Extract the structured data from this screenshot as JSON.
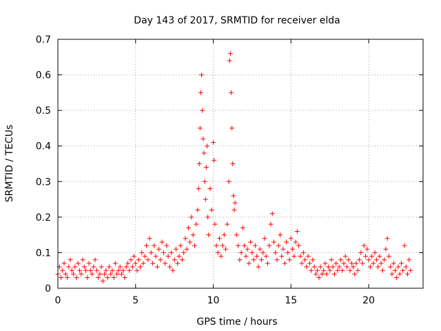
{
  "chart_data": {
    "type": "scatter",
    "title": "Day 143 of 2017, SRMTID for receiver elda",
    "xlabel": "GPS time / hours",
    "ylabel": "SRMTID / TECUs",
    "xlim": [
      0,
      23.5
    ],
    "ylim": [
      0,
      0.7
    ],
    "xticks": [
      0,
      5,
      10,
      15,
      20
    ],
    "yticks": [
      0,
      0.1,
      0.2,
      0.3,
      0.4,
      0.5,
      0.6,
      0.7
    ],
    "xtick_labels": [
      "0",
      "5",
      "10",
      "15",
      "20"
    ],
    "ytick_labels": [
      "0",
      "0.1",
      "0.2",
      "0.3",
      "0.4",
      "0.5",
      "0.6",
      "0.7"
    ],
    "grid": true,
    "marker": "plus",
    "series": [
      {
        "name": "SRMTID",
        "color": "#ff0000",
        "points": [
          [
            0.0,
            0.04
          ],
          [
            0.1,
            0.06
          ],
          [
            0.2,
            0.03
          ],
          [
            0.3,
            0.05
          ],
          [
            0.4,
            0.07
          ],
          [
            0.5,
            0.04
          ],
          [
            0.6,
            0.03
          ],
          [
            0.7,
            0.06
          ],
          [
            0.8,
            0.08
          ],
          [
            0.9,
            0.05
          ],
          [
            1.0,
            0.04
          ],
          [
            1.1,
            0.06
          ],
          [
            1.2,
            0.03
          ],
          [
            1.3,
            0.07
          ],
          [
            1.4,
            0.05
          ],
          [
            1.5,
            0.04
          ],
          [
            1.6,
            0.08
          ],
          [
            1.7,
            0.06
          ],
          [
            1.8,
            0.05
          ],
          [
            1.9,
            0.03
          ],
          [
            2.0,
            0.07
          ],
          [
            2.1,
            0.05
          ],
          [
            2.2,
            0.04
          ],
          [
            2.3,
            0.06
          ],
          [
            2.4,
            0.08
          ],
          [
            2.5,
            0.05
          ],
          [
            2.6,
            0.03
          ],
          [
            2.7,
            0.04
          ],
          [
            2.8,
            0.06
          ],
          [
            2.9,
            0.02
          ],
          [
            3.0,
            0.04
          ],
          [
            3.1,
            0.05
          ],
          [
            3.2,
            0.03
          ],
          [
            3.3,
            0.06
          ],
          [
            3.4,
            0.04
          ],
          [
            3.5,
            0.05
          ],
          [
            3.6,
            0.03
          ],
          [
            3.7,
            0.07
          ],
          [
            3.8,
            0.04
          ],
          [
            3.9,
            0.05
          ],
          [
            4.0,
            0.06
          ],
          [
            4.1,
            0.04
          ],
          [
            4.2,
            0.05
          ],
          [
            4.3,
            0.03
          ],
          [
            4.4,
            0.06
          ],
          [
            4.5,
            0.07
          ],
          [
            4.6,
            0.05
          ],
          [
            4.7,
            0.08
          ],
          [
            4.8,
            0.06
          ],
          [
            4.9,
            0.09
          ],
          [
            5.0,
            0.07
          ],
          [
            5.1,
            0.05
          ],
          [
            5.2,
            0.08
          ],
          [
            5.3,
            0.06
          ],
          [
            5.4,
            0.1
          ],
          [
            5.5,
            0.07
          ],
          [
            5.6,
            0.09
          ],
          [
            5.7,
            0.12
          ],
          [
            5.8,
            0.08
          ],
          [
            5.9,
            0.14
          ],
          [
            6.0,
            0.1
          ],
          [
            6.1,
            0.07
          ],
          [
            6.2,
            0.12
          ],
          [
            6.3,
            0.09
          ],
          [
            6.4,
            0.06
          ],
          [
            6.5,
            0.11
          ],
          [
            6.6,
            0.08
          ],
          [
            6.7,
            0.13
          ],
          [
            6.8,
            0.1
          ],
          [
            6.9,
            0.07
          ],
          [
            7.0,
            0.12
          ],
          [
            7.1,
            0.09
          ],
          [
            7.2,
            0.06
          ],
          [
            7.3,
            0.1
          ],
          [
            7.4,
            0.05
          ],
          [
            7.5,
            0.08
          ],
          [
            7.6,
            0.11
          ],
          [
            7.7,
            0.07
          ],
          [
            7.8,
            0.09
          ],
          [
            7.9,
            0.12
          ],
          [
            8.0,
            0.08
          ],
          [
            8.1,
            0.1
          ],
          [
            8.2,
            0.14
          ],
          [
            8.3,
            0.11
          ],
          [
            8.4,
            0.17
          ],
          [
            8.5,
            0.13
          ],
          [
            8.6,
            0.2
          ],
          [
            8.7,
            0.15
          ],
          [
            8.8,
            0.12
          ],
          [
            8.9,
            0.18
          ],
          [
            9.0,
            0.22
          ],
          [
            9.05,
            0.28
          ],
          [
            9.1,
            0.35
          ],
          [
            9.15,
            0.45
          ],
          [
            9.2,
            0.55
          ],
          [
            9.25,
            0.6
          ],
          [
            9.3,
            0.5
          ],
          [
            9.35,
            0.42
          ],
          [
            9.4,
            0.38
          ],
          [
            9.45,
            0.3
          ],
          [
            9.5,
            0.25
          ],
          [
            9.55,
            0.34
          ],
          [
            9.6,
            0.4
          ],
          [
            9.65,
            0.2
          ],
          [
            9.7,
            0.15
          ],
          [
            9.8,
            0.28
          ],
          [
            9.9,
            0.22
          ],
          [
            10.0,
            0.41
          ],
          [
            10.05,
            0.36
          ],
          [
            10.1,
            0.18
          ],
          [
            10.2,
            0.12
          ],
          [
            10.3,
            0.1
          ],
          [
            10.4,
            0.14
          ],
          [
            10.5,
            0.09
          ],
          [
            10.6,
            0.12
          ],
          [
            10.7,
            0.15
          ],
          [
            10.8,
            0.11
          ],
          [
            10.9,
            0.18
          ],
          [
            11.0,
            0.3
          ],
          [
            11.05,
            0.64
          ],
          [
            11.1,
            0.66
          ],
          [
            11.15,
            0.55
          ],
          [
            11.2,
            0.45
          ],
          [
            11.25,
            0.35
          ],
          [
            11.3,
            0.26
          ],
          [
            11.35,
            0.22
          ],
          [
            11.4,
            0.24
          ],
          [
            11.5,
            0.15
          ],
          [
            11.6,
            0.12
          ],
          [
            11.7,
            0.08
          ],
          [
            11.8,
            0.1
          ],
          [
            11.9,
            0.17
          ],
          [
            12.0,
            0.12
          ],
          [
            12.1,
            0.09
          ],
          [
            12.2,
            0.11
          ],
          [
            12.3,
            0.07
          ],
          [
            12.4,
            0.13
          ],
          [
            12.5,
            0.1
          ],
          [
            12.6,
            0.08
          ],
          [
            12.7,
            0.12
          ],
          [
            12.8,
            0.09
          ],
          [
            12.9,
            0.06
          ],
          [
            13.0,
            0.11
          ],
          [
            13.1,
            0.08
          ],
          [
            13.2,
            0.1
          ],
          [
            13.3,
            0.14
          ],
          [
            13.4,
            0.09
          ],
          [
            13.5,
            0.07
          ],
          [
            13.6,
            0.12
          ],
          [
            13.7,
            0.18
          ],
          [
            13.8,
            0.21
          ],
          [
            13.9,
            0.13
          ],
          [
            14.0,
            0.1
          ],
          [
            14.1,
            0.08
          ],
          [
            14.2,
            0.12
          ],
          [
            14.3,
            0.15
          ],
          [
            14.4,
            0.09
          ],
          [
            14.5,
            0.11
          ],
          [
            14.6,
            0.07
          ],
          [
            14.7,
            0.13
          ],
          [
            14.8,
            0.1
          ],
          [
            14.9,
            0.08
          ],
          [
            15.0,
            0.14
          ],
          [
            15.1,
            0.11
          ],
          [
            15.2,
            0.09
          ],
          [
            15.3,
            0.13
          ],
          [
            15.4,
            0.16
          ],
          [
            15.5,
            0.12
          ],
          [
            15.6,
            0.09
          ],
          [
            15.7,
            0.07
          ],
          [
            15.8,
            0.1
          ],
          [
            15.9,
            0.08
          ],
          [
            16.0,
            0.06
          ],
          [
            16.1,
            0.09
          ],
          [
            16.2,
            0.07
          ],
          [
            16.3,
            0.05
          ],
          [
            16.4,
            0.08
          ],
          [
            16.5,
            0.06
          ],
          [
            16.6,
            0.04
          ],
          [
            16.7,
            0.05
          ],
          [
            16.8,
            0.03
          ],
          [
            16.9,
            0.06
          ],
          [
            17.0,
            0.04
          ],
          [
            17.1,
            0.05
          ],
          [
            17.2,
            0.07
          ],
          [
            17.3,
            0.04
          ],
          [
            17.4,
            0.06
          ],
          [
            17.5,
            0.05
          ],
          [
            17.6,
            0.08
          ],
          [
            17.7,
            0.06
          ],
          [
            17.8,
            0.04
          ],
          [
            17.9,
            0.07
          ],
          [
            18.0,
            0.05
          ],
          [
            18.1,
            0.06
          ],
          [
            18.2,
            0.08
          ],
          [
            18.3,
            0.05
          ],
          [
            18.4,
            0.07
          ],
          [
            18.5,
            0.09
          ],
          [
            18.6,
            0.06
          ],
          [
            18.7,
            0.08
          ],
          [
            18.8,
            0.05
          ],
          [
            18.9,
            0.07
          ],
          [
            19.0,
            0.06
          ],
          [
            19.1,
            0.04
          ],
          [
            19.2,
            0.07
          ],
          [
            19.3,
            0.05
          ],
          [
            19.4,
            0.08
          ],
          [
            19.5,
            0.1
          ],
          [
            19.6,
            0.07
          ],
          [
            19.7,
            0.12
          ],
          [
            19.8,
            0.09
          ],
          [
            19.9,
            0.11
          ],
          [
            20.0,
            0.08
          ],
          [
            20.1,
            0.06
          ],
          [
            20.2,
            0.09
          ],
          [
            20.3,
            0.07
          ],
          [
            20.4,
            0.1
          ],
          [
            20.5,
            0.08
          ],
          [
            20.6,
            0.06
          ],
          [
            20.7,
            0.09
          ],
          [
            20.8,
            0.07
          ],
          [
            20.9,
            0.05
          ],
          [
            21.0,
            0.08
          ],
          [
            21.1,
            0.11
          ],
          [
            21.2,
            0.14
          ],
          [
            21.3,
            0.09
          ],
          [
            21.4,
            0.06
          ],
          [
            21.5,
            0.04
          ],
          [
            21.6,
            0.07
          ],
          [
            21.7,
            0.05
          ],
          [
            21.8,
            0.03
          ],
          [
            21.9,
            0.06
          ],
          [
            22.0,
            0.04
          ],
          [
            22.1,
            0.07
          ],
          [
            22.2,
            0.05
          ],
          [
            22.3,
            0.12
          ],
          [
            22.4,
            0.06
          ],
          [
            22.5,
            0.04
          ],
          [
            22.6,
            0.08
          ],
          [
            22.7,
            0.05
          ]
        ]
      }
    ]
  }
}
